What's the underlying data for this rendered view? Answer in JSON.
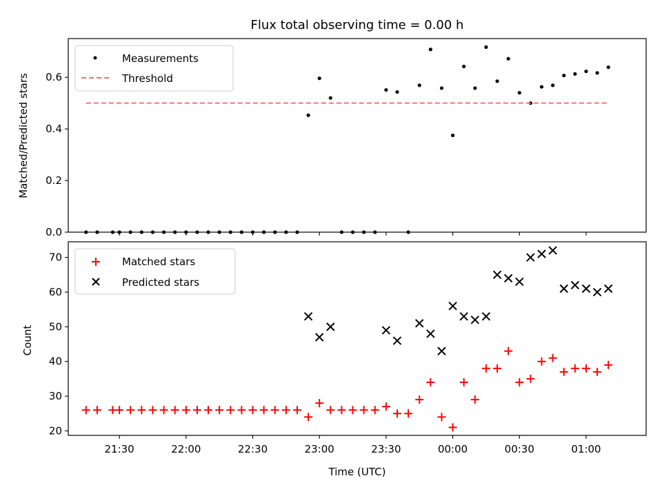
{
  "chart_data": [
    {
      "type": "scatter",
      "title": "Flux total observing time = 0.00 h",
      "xlabel": "",
      "ylabel": "Matched/Predicted stars",
      "xlim": [
        "21:07",
        "01:27"
      ],
      "ylim": [
        0.0,
        0.75
      ],
      "yticks": [
        "0.0",
        "0.2",
        "0.4",
        "0.6"
      ],
      "grid": false,
      "legend": "top-left",
      "series": [
        {
          "name": "Measurements",
          "style": "dot",
          "color": "#000000",
          "points": [
            [
              "21:15",
              0
            ],
            [
              "21:20",
              0
            ],
            [
              "21:27",
              0
            ],
            [
              "21:30",
              0
            ],
            [
              "21:35",
              0
            ],
            [
              "21:40",
              0
            ],
            [
              "21:45",
              0
            ],
            [
              "21:50",
              0
            ],
            [
              "21:55",
              0
            ],
            [
              "22:00",
              0
            ],
            [
              "22:05",
              0
            ],
            [
              "22:10",
              0
            ],
            [
              "22:15",
              0
            ],
            [
              "22:20",
              0
            ],
            [
              "22:25",
              0
            ],
            [
              "22:30",
              0
            ],
            [
              "22:35",
              0
            ],
            [
              "22:40",
              0
            ],
            [
              "22:45",
              0
            ],
            [
              "22:50",
              0
            ],
            [
              "22:55",
              0.453
            ],
            [
              "23:00",
              0.596
            ],
            [
              "23:05",
              0.52
            ],
            [
              "23:10",
              0
            ],
            [
              "23:15",
              0
            ],
            [
              "23:20",
              0
            ],
            [
              "23:25",
              0
            ],
            [
              "23:30",
              0.551
            ],
            [
              "23:35",
              0.543
            ],
            [
              "23:40",
              0
            ],
            [
              "23:45",
              0.569
            ],
            [
              "23:50",
              0.708
            ],
            [
              "23:55",
              0.558
            ],
            [
              "00:00",
              0.375
            ],
            [
              "00:05",
              0.642
            ],
            [
              "00:10",
              0.558
            ],
            [
              "00:15",
              0.717
            ],
            [
              "00:20",
              0.585
            ],
            [
              "00:25",
              0.672
            ],
            [
              "00:30",
              0.54
            ],
            [
              "00:35",
              0.5
            ],
            [
              "00:40",
              0.563
            ],
            [
              "00:45",
              0.569
            ],
            [
              "00:50",
              0.607
            ],
            [
              "00:55",
              0.613
            ],
            [
              "01:00",
              0.623
            ],
            [
              "01:05",
              0.617
            ],
            [
              "01:10",
              0.639
            ]
          ]
        },
        {
          "name": "Threshold",
          "style": "dashed-line",
          "color": "#ff7070",
          "points": [
            [
              "21:15",
              0.5
            ],
            [
              "01:10",
              0.5
            ]
          ]
        }
      ]
    },
    {
      "type": "scatter",
      "title": "",
      "xlabel": "Time (UTC)",
      "ylabel": "Count",
      "xlim": [
        "21:07",
        "01:27"
      ],
      "ylim": [
        18.7,
        74.5
      ],
      "yticks": [
        "20",
        "30",
        "40",
        "50",
        "60",
        "70"
      ],
      "xticks": [
        "21:30",
        "22:00",
        "22:30",
        "23:00",
        "23:30",
        "00:00",
        "00:30",
        "01:00"
      ],
      "grid": false,
      "legend": "top-left",
      "series": [
        {
          "name": "Matched stars",
          "style": "plus",
          "color": "#ff0000",
          "points": [
            [
              "21:15",
              26
            ],
            [
              "21:20",
              26
            ],
            [
              "21:27",
              26
            ],
            [
              "21:30",
              26
            ],
            [
              "21:35",
              26
            ],
            [
              "21:40",
              26
            ],
            [
              "21:45",
              26
            ],
            [
              "21:50",
              26
            ],
            [
              "21:55",
              26
            ],
            [
              "22:00",
              26
            ],
            [
              "22:05",
              26
            ],
            [
              "22:10",
              26
            ],
            [
              "22:15",
              26
            ],
            [
              "22:20",
              26
            ],
            [
              "22:25",
              26
            ],
            [
              "22:30",
              26
            ],
            [
              "22:35",
              26
            ],
            [
              "22:40",
              26
            ],
            [
              "22:45",
              26
            ],
            [
              "22:50",
              26
            ],
            [
              "22:55",
              24
            ],
            [
              "23:00",
              28
            ],
            [
              "23:05",
              26
            ],
            [
              "23:10",
              26
            ],
            [
              "23:15",
              26
            ],
            [
              "23:20",
              26
            ],
            [
              "23:25",
              26
            ],
            [
              "23:30",
              27
            ],
            [
              "23:35",
              25
            ],
            [
              "23:40",
              25
            ],
            [
              "23:45",
              29
            ],
            [
              "23:50",
              34
            ],
            [
              "23:55",
              24
            ],
            [
              "00:00",
              21
            ],
            [
              "00:05",
              34
            ],
            [
              "00:10",
              29
            ],
            [
              "00:15",
              38
            ],
            [
              "00:20",
              38
            ],
            [
              "00:25",
              43
            ],
            [
              "00:30",
              34
            ],
            [
              "00:35",
              35
            ],
            [
              "00:40",
              40
            ],
            [
              "00:45",
              41
            ],
            [
              "00:50",
              37
            ],
            [
              "00:55",
              38
            ],
            [
              "01:00",
              38
            ],
            [
              "01:05",
              37
            ],
            [
              "01:10",
              39
            ]
          ]
        },
        {
          "name": "Predicted stars",
          "style": "x",
          "color": "#000000",
          "points": [
            [
              "22:55",
              53
            ],
            [
              "23:00",
              47
            ],
            [
              "23:05",
              50
            ],
            [
              "23:30",
              49
            ],
            [
              "23:35",
              46
            ],
            [
              "23:45",
              51
            ],
            [
              "23:50",
              48
            ],
            [
              "23:55",
              43
            ],
            [
              "00:00",
              56
            ],
            [
              "00:05",
              53
            ],
            [
              "00:10",
              52
            ],
            [
              "00:15",
              53
            ],
            [
              "00:20",
              65
            ],
            [
              "00:25",
              64
            ],
            [
              "00:30",
              63
            ],
            [
              "00:35",
              70
            ],
            [
              "00:40",
              71
            ],
            [
              "00:45",
              72
            ],
            [
              "00:50",
              61
            ],
            [
              "00:55",
              62
            ],
            [
              "01:00",
              61
            ],
            [
              "01:05",
              60
            ],
            [
              "01:10",
              61
            ]
          ]
        }
      ]
    }
  ]
}
